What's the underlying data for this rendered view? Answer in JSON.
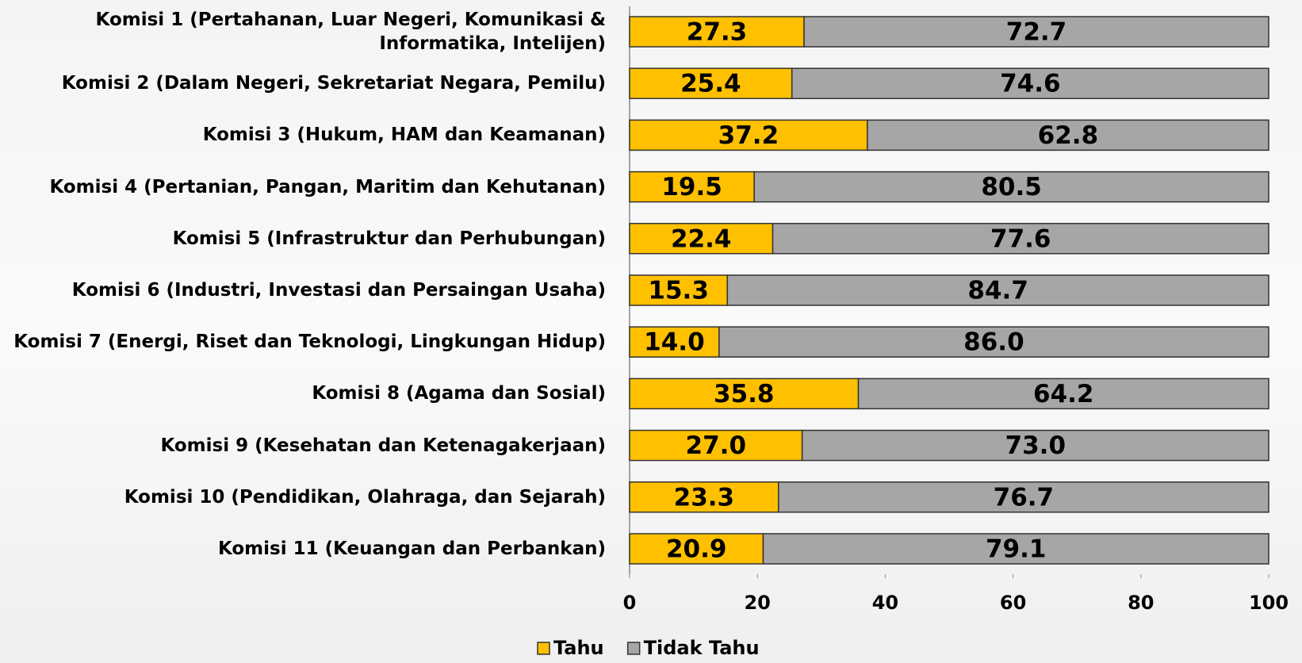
{
  "chart_data": {
    "type": "stacked-barh",
    "categories": [
      "Komisi 1 (Pertahanan, Luar Negeri, Komunikasi & Informatika, Intelijen)",
      "Komisi 2 (Dalam Negeri, Sekretariat Negara, Pemilu)",
      "Komisi 3 (Hukum, HAM dan Keamanan)",
      "Komisi 4 (Pertanian, Pangan, Maritim dan Kehutanan)",
      "Komisi 5 (Infrastruktur dan Perhubungan)",
      "Komisi 6 (Industri, Investasi dan Persaingan Usaha)",
      "Komisi 7 (Energi, Riset dan Teknologi, Lingkungan Hidup)",
      "Komisi 8 (Agama dan Sosial)",
      "Komisi 9 (Kesehatan dan Ketenagakerjaan)",
      "Komisi 10 (Pendidikan, Olahraga, dan Sejarah)",
      "Komisi 11 (Keuangan dan Perbankan)"
    ],
    "series": [
      {
        "name": "Tahu",
        "color": "#ffc000",
        "values": [
          27.3,
          25.4,
          37.2,
          19.5,
          22.4,
          15.3,
          14.0,
          35.8,
          27.0,
          23.3,
          20.9
        ],
        "value_labels": [
          "27.3",
          "25.4",
          "37.2",
          "19.5",
          "22.4",
          "15.3",
          "14.0",
          "35.8",
          "27.0",
          "23.3",
          "20.9"
        ]
      },
      {
        "name": "Tidak Tahu",
        "color": "#a6a6a6",
        "values": [
          72.7,
          74.6,
          62.8,
          80.5,
          77.6,
          84.7,
          86.0,
          64.2,
          73.0,
          76.7,
          79.1
        ],
        "value_labels": [
          "72.7",
          "74.6",
          "62.8",
          "80.5",
          "77.6",
          "84.7",
          "86.0",
          "64.2",
          "73.0",
          "76.7",
          "79.1"
        ]
      }
    ],
    "xlim": [
      0,
      100
    ],
    "xticks": [
      0,
      20,
      40,
      60,
      80,
      100
    ],
    "legend": "bottom"
  }
}
